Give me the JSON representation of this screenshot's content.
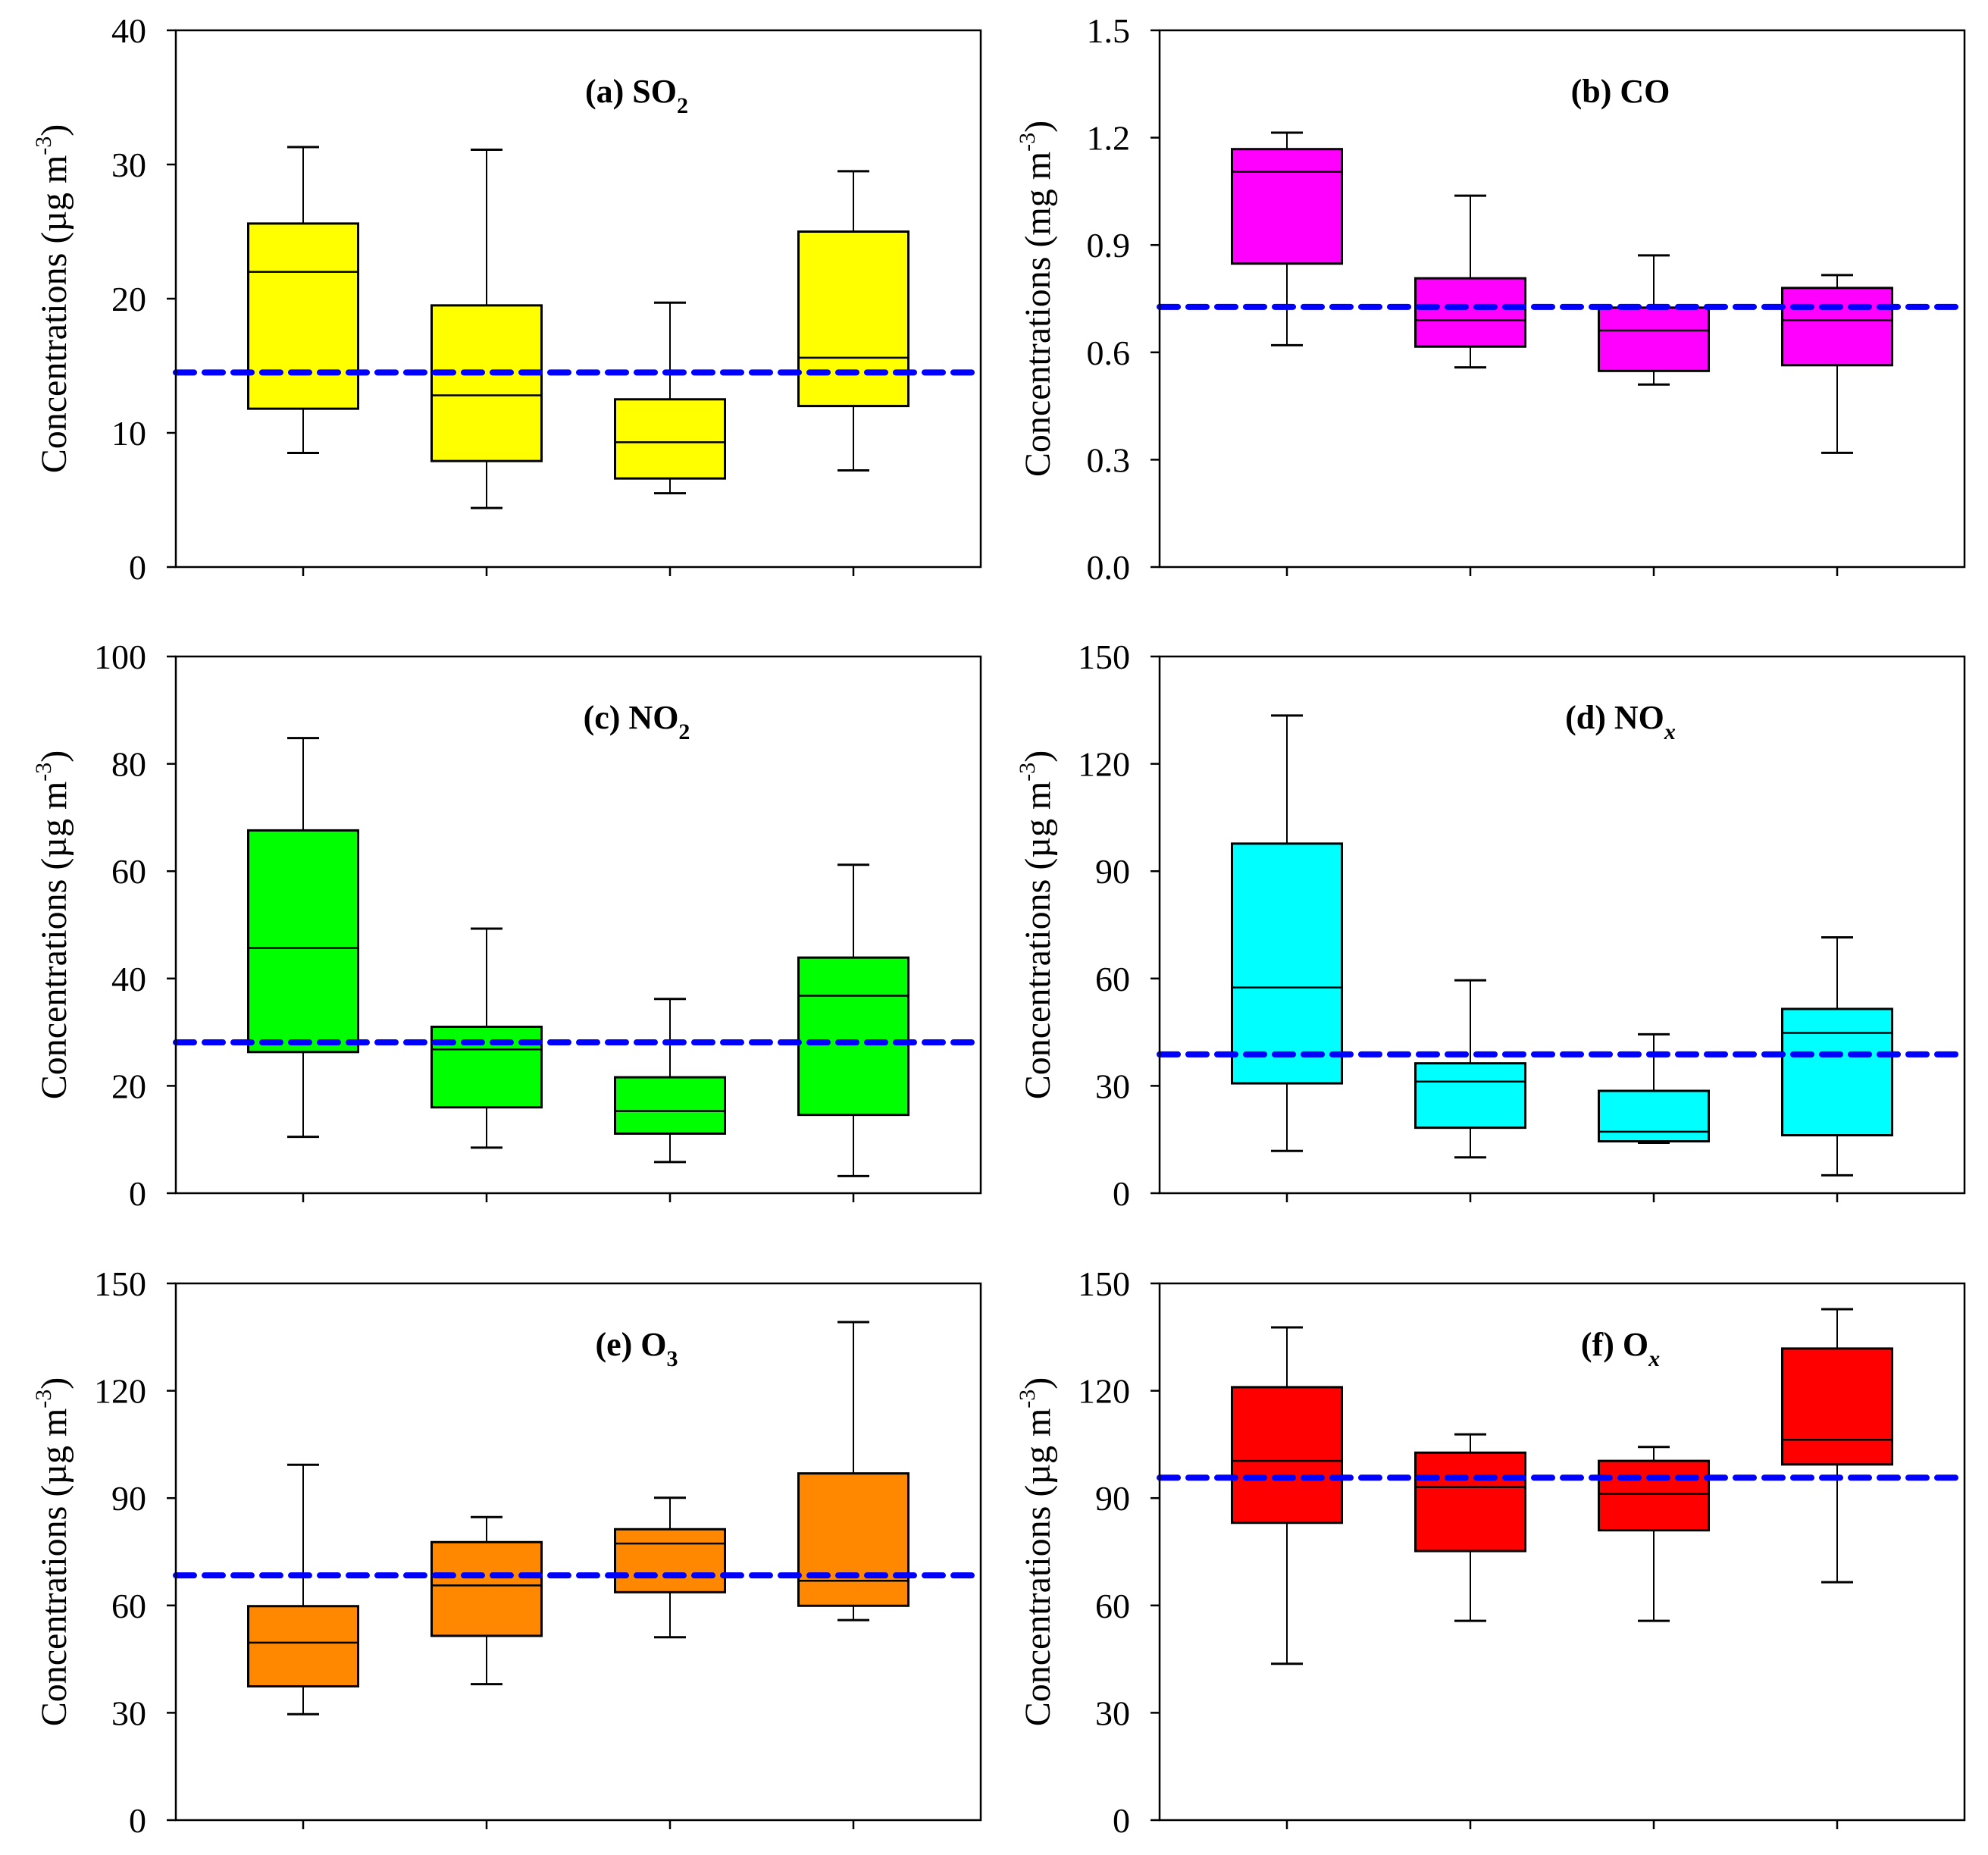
{
  "chart_data": [
    {
      "type": "box",
      "panel": "a",
      "title": {
        "prefix": "(a) ",
        "main": "SO",
        "sub": "2",
        "sub_italic": false
      },
      "ylabel": {
        "main": "Concentrations (µg m",
        "sup": "-3",
        "close": ")"
      },
      "ylim": [
        0,
        40
      ],
      "yticks": [
        0,
        10,
        20,
        30,
        40
      ],
      "ytick_labels": [
        "0",
        "10",
        "20",
        "30",
        "40"
      ],
      "categories": [
        "",
        "",
        "",
        ""
      ],
      "fill_color": "#ffff00",
      "reference_line": 14.5,
      "boxes": [
        {
          "whisker_low": 8.5,
          "q1": 11.8,
          "median": 22.0,
          "q3": 25.6,
          "whisker_high": 31.3
        },
        {
          "whisker_low": 4.4,
          "q1": 7.9,
          "median": 12.8,
          "q3": 19.5,
          "whisker_high": 31.1
        },
        {
          "whisker_low": 5.5,
          "q1": 6.6,
          "median": 9.3,
          "q3": 12.5,
          "whisker_high": 19.7
        },
        {
          "whisker_low": 7.2,
          "q1": 12.0,
          "median": 15.6,
          "q3": 25.0,
          "whisker_high": 29.5
        }
      ]
    },
    {
      "type": "box",
      "panel": "b",
      "title": {
        "prefix": "(b) ",
        "main": "CO",
        "sub": "",
        "sub_italic": false
      },
      "ylabel": {
        "main": "Concentrations (mg m",
        "sup": "-3",
        "close": ")"
      },
      "ylim": [
        0,
        1.5
      ],
      "yticks": [
        0,
        0.3,
        0.6,
        0.9,
        1.2,
        1.5
      ],
      "ytick_labels": [
        "0.0",
        "0.3",
        "0.6",
        "0.9",
        "1.2",
        "1.5"
      ],
      "categories": [
        "",
        "",
        "",
        ""
      ],
      "fill_color": "#ff00ff",
      "reference_line": 0.727,
      "boxes": [
        {
          "whisker_low": 0.62,
          "q1": 0.848,
          "median": 1.105,
          "q3": 1.168,
          "whisker_high": 1.214
        },
        {
          "whisker_low": 0.558,
          "q1": 0.616,
          "median": 0.69,
          "q3": 0.807,
          "whisker_high": 1.038
        },
        {
          "whisker_low": 0.51,
          "q1": 0.548,
          "median": 0.661,
          "q3": 0.725,
          "whisker_high": 0.871
        },
        {
          "whisker_low": 0.319,
          "q1": 0.564,
          "median": 0.69,
          "q3": 0.78,
          "whisker_high": 0.816
        }
      ]
    },
    {
      "type": "box",
      "panel": "c",
      "title": {
        "prefix": "(c) ",
        "main": "NO",
        "sub": "2",
        "sub_italic": false
      },
      "ylabel": {
        "main": "Concentrations (µg m",
        "sup": "-3",
        "close": ")"
      },
      "ylim": [
        0,
        100
      ],
      "yticks": [
        0,
        20,
        40,
        60,
        80,
        100
      ],
      "ytick_labels": [
        "0",
        "20",
        "40",
        "60",
        "80",
        "100"
      ],
      "categories": [
        "",
        "",
        "",
        ""
      ],
      "fill_color": "#00ff00",
      "reference_line": 28.1,
      "boxes": [
        {
          "whisker_low": 10.5,
          "q1": 26.3,
          "median": 45.7,
          "q3": 67.6,
          "whisker_high": 84.8
        },
        {
          "whisker_low": 8.5,
          "q1": 16.0,
          "median": 26.8,
          "q3": 31.0,
          "whisker_high": 49.3
        },
        {
          "whisker_low": 5.8,
          "q1": 11.1,
          "median": 15.3,
          "q3": 21.6,
          "whisker_high": 36.2
        },
        {
          "whisker_low": 3.2,
          "q1": 14.6,
          "median": 36.8,
          "q3": 43.9,
          "whisker_high": 61.2
        }
      ]
    },
    {
      "type": "box",
      "panel": "d",
      "title": {
        "prefix": "(d) ",
        "main": "NO",
        "sub": "x",
        "sub_italic": true
      },
      "ylabel": {
        "main": "Concentrations (µg m",
        "sup": "-3",
        "close": ")"
      },
      "ylim": [
        0,
        150
      ],
      "yticks": [
        0,
        30,
        60,
        90,
        120,
        150
      ],
      "ytick_labels": [
        "0",
        "30",
        "60",
        "90",
        "120",
        "150"
      ],
      "categories": [
        "",
        "",
        "",
        ""
      ],
      "fill_color": "#00ffff",
      "reference_line": 38.8,
      "boxes": [
        {
          "whisker_low": 11.8,
          "q1": 30.7,
          "median": 57.5,
          "q3": 97.7,
          "whisker_high": 133.5
        },
        {
          "whisker_low": 10.0,
          "q1": 18.3,
          "median": 31.2,
          "q3": 36.3,
          "whisker_high": 59.5
        },
        {
          "whisker_low": 14.1,
          "q1": 14.5,
          "median": 17.2,
          "q3": 28.6,
          "whisker_high": 44.4
        },
        {
          "whisker_low": 5.0,
          "q1": 16.2,
          "median": 44.8,
          "q3": 51.5,
          "whisker_high": 71.5
        }
      ]
    },
    {
      "type": "box",
      "panel": "e",
      "title": {
        "prefix": "(e) ",
        "main": "O",
        "sub": "3",
        "sub_italic": false
      },
      "ylabel": {
        "main": "Concentrations (µg m",
        "sup": "-3",
        "close": ")"
      },
      "ylim": [
        0,
        150
      ],
      "yticks": [
        0,
        30,
        60,
        90,
        120,
        150
      ],
      "ytick_labels": [
        "0",
        "30",
        "60",
        "90",
        "120",
        "150"
      ],
      "categories": [
        "",
        "",
        "",
        ""
      ],
      "fill_color": "#ff8800",
      "reference_line": 68.4,
      "boxes": [
        {
          "whisker_low": 29.6,
          "q1": 37.4,
          "median": 49.6,
          "q3": 59.8,
          "whisker_high": 99.3
        },
        {
          "whisker_low": 38.0,
          "q1": 51.5,
          "median": 65.6,
          "q3": 77.7,
          "whisker_high": 84.7
        },
        {
          "whisker_low": 51.1,
          "q1": 63.7,
          "median": 77.3,
          "q3": 81.3,
          "whisker_high": 90.1
        },
        {
          "whisker_low": 55.9,
          "q1": 59.9,
          "median": 66.9,
          "q3": 96.9,
          "whisker_high": 139.2
        }
      ]
    },
    {
      "type": "box",
      "panel": "f",
      "title": {
        "prefix": "(f) ",
        "main": "O",
        "sub": "x",
        "sub_italic": true
      },
      "ylabel": {
        "main": "Concentrations (µg m",
        "sup": "-3",
        "close": ")"
      },
      "ylim": [
        0,
        150
      ],
      "yticks": [
        0,
        30,
        60,
        90,
        120,
        150
      ],
      "ytick_labels": [
        "0",
        "30",
        "60",
        "90",
        "120",
        "150"
      ],
      "categories": [
        "",
        "",
        "",
        ""
      ],
      "fill_color": "#ff0000",
      "reference_line": 95.7,
      "boxes": [
        {
          "whisker_low": 43.7,
          "q1": 83.1,
          "median": 100.4,
          "q3": 121.0,
          "whisker_high": 137.7
        },
        {
          "whisker_low": 55.7,
          "q1": 75.2,
          "median": 93.1,
          "q3": 102.7,
          "whisker_high": 107.8
        },
        {
          "whisker_low": 55.7,
          "q1": 81.0,
          "median": 91.2,
          "q3": 100.4,
          "whisker_high": 104.3
        },
        {
          "whisker_low": 66.5,
          "q1": 99.4,
          "median": 106.3,
          "q3": 131.8,
          "whisker_high": 142.8
        }
      ]
    }
  ],
  "colors": {
    "reference_line": "#0000ff",
    "axis": "#000000"
  }
}
